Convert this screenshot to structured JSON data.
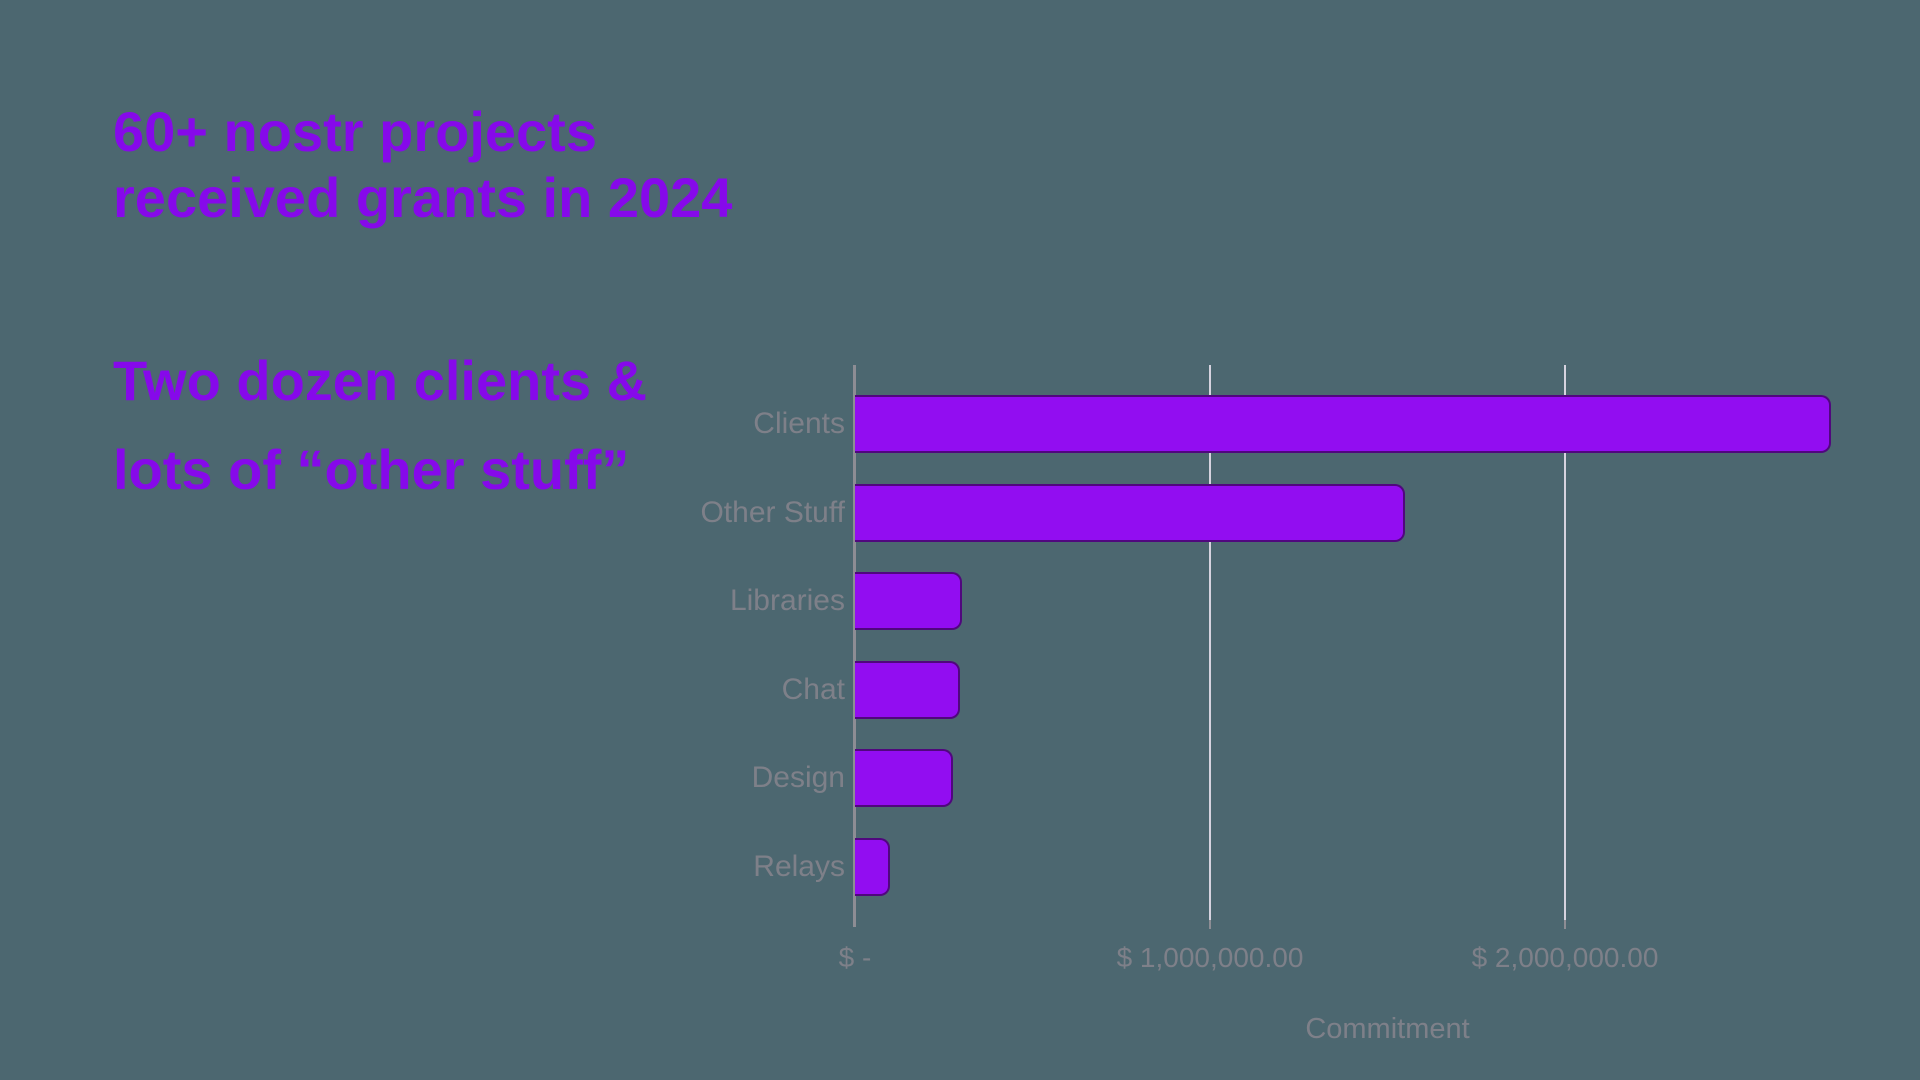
{
  "slide": {
    "headline": [
      "60+ nostr projects",
      "received grants in 2024"
    ],
    "subheadline": [
      "Two dozen clients &",
      "lots of “other stuff”"
    ]
  },
  "chart_data": {
    "type": "bar",
    "orientation": "horizontal",
    "title": "",
    "categories": [
      "Clients",
      "Other Stuff",
      "Libraries",
      "Chat",
      "Design",
      "Relays"
    ],
    "values": [
      2750000,
      1550000,
      300000,
      295000,
      275000,
      98000
    ],
    "xlabel": "Commitment",
    "ylabel": "",
    "xlim": [
      0,
      3000000
    ],
    "x_ticks": [
      {
        "value": 0,
        "label": "$ -"
      },
      {
        "value": 1000000,
        "label": "$ 1,000,000.00"
      },
      {
        "value": 2000000,
        "label": "$ 2,000,000.00"
      }
    ],
    "grid": true,
    "legend": false
  },
  "colors": {
    "background": "#4C6770",
    "heading": "#8609EA",
    "bar_fill": "#920DF1",
    "bar_border": "#50077E",
    "label_text": "#7E8089",
    "gridline": "#D6D3DF",
    "axis_line": "#8D8D94"
  }
}
